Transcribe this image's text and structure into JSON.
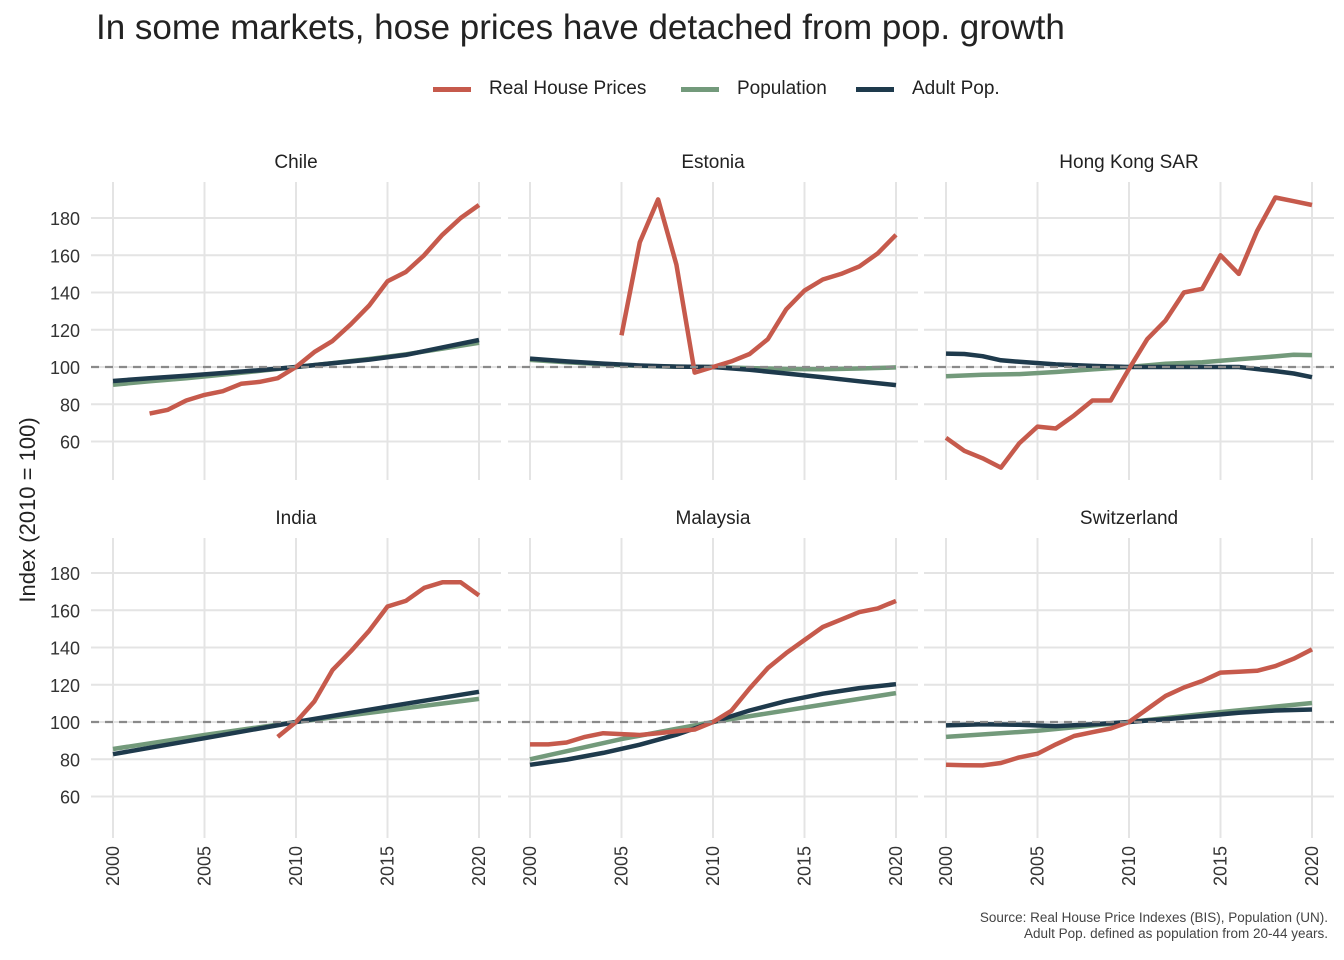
{
  "chart_data": {
    "type": "line",
    "title": "In some markets, hose prices have detached from pop. growth",
    "ylabel": "Index (2010 = 100)",
    "xlabel": "",
    "xlim": [
      2000,
      2020
    ],
    "ylim": [
      40,
      200
    ],
    "x_ticks": [
      "2000",
      "2005",
      "2010",
      "2015",
      "2020"
    ],
    "y_ticks": [
      "60",
      "80",
      "100",
      "120",
      "140",
      "160",
      "180"
    ],
    "reference_line": 100,
    "grid": true,
    "legend_position": "top-center",
    "legend": [
      {
        "name": "Real House Prices",
        "color": "#C65A4C"
      },
      {
        "name": "Population",
        "color": "#739A7B"
      },
      {
        "name": "Adult Pop.",
        "color": "#1E3A4C"
      }
    ],
    "caption": [
      "Source: Real House Price Indexes (BIS), Population (UN).",
      "Adult Pop. defined as population from 20-44 years."
    ],
    "panels": [
      {
        "name": "Chile",
        "series": [
          {
            "name": "Real House Prices",
            "color": "#C65A4C",
            "x": [
              2002,
              2003,
              2004,
              2005,
              2006,
              2007,
              2008,
              2009,
              2010,
              2011,
              2012,
              2013,
              2014,
              2015,
              2016,
              2017,
              2018,
              2019,
              2020
            ],
            "y": [
              75,
              77,
              82,
              85,
              87,
              91,
              92,
              94,
              100,
              108,
              114,
              123,
              133,
              146,
              151,
              160,
              171,
              180,
              187
            ]
          },
          {
            "name": "Population",
            "color": "#739A7B",
            "x": [
              2000,
              2002,
              2004,
              2006,
              2008,
              2010,
              2012,
              2014,
              2016,
              2018,
              2020
            ],
            "y": [
              90.5,
              92.3,
              94.0,
              95.9,
              97.9,
              100,
              102.1,
              104.3,
              106.8,
              109.8,
              113
            ]
          },
          {
            "name": "Adult Pop.",
            "color": "#1E3A4C",
            "x": [
              2000,
              2002,
              2004,
              2006,
              2008,
              2010,
              2012,
              2014,
              2016,
              2018,
              2020
            ],
            "y": [
              92.5,
              94,
              95.3,
              96.8,
              98.3,
              100,
              102,
              104,
              106.5,
              110.5,
              114.5
            ]
          }
        ]
      },
      {
        "name": "Estonia",
        "series": [
          {
            "name": "Real House Prices",
            "color": "#C65A4C",
            "x": [
              2005,
              2006,
              2007,
              2008,
              2009,
              2010,
              2011,
              2012,
              2013,
              2014,
              2015,
              2016,
              2017,
              2018,
              2019,
              2020
            ],
            "y": [
              117,
              167,
              190,
              155,
              97,
              100,
              103,
              107,
              115,
              131,
              141,
              147,
              150,
              154,
              161,
              171
            ]
          },
          {
            "name": "Population",
            "color": "#739A7B",
            "x": [
              2000,
              2002,
              2004,
              2006,
              2008,
              2010,
              2012,
              2014,
              2016,
              2018,
              2020
            ],
            "y": [
              103.8,
              102.6,
              101.5,
              100.6,
              100.2,
              100,
              99.4,
              98.9,
              98.8,
              99.2,
              99.8
            ]
          },
          {
            "name": "Adult Pop.",
            "color": "#1E3A4C",
            "x": [
              2000,
              2002,
              2004,
              2006,
              2008,
              2010,
              2012,
              2014,
              2016,
              2018,
              2020
            ],
            "y": [
              104.5,
              103,
              101.8,
              100.8,
              100.2,
              100,
              98.5,
              96.5,
              94.5,
              92.3,
              90.3
            ]
          }
        ]
      },
      {
        "name": "Hong Kong SAR",
        "series": [
          {
            "name": "Real House Prices",
            "color": "#C65A4C",
            "x": [
              2000,
              2001,
              2002,
              2003,
              2004,
              2005,
              2006,
              2007,
              2008,
              2009,
              2010,
              2011,
              2012,
              2013,
              2014,
              2015,
              2016,
              2017,
              2018,
              2019,
              2020
            ],
            "y": [
              62,
              55,
              51,
              46,
              59,
              68,
              67,
              74,
              82,
              82,
              99,
              115,
              125,
              140,
              142,
              160,
              150,
              173,
              191,
              189,
              187
            ]
          },
          {
            "name": "Population",
            "color": "#739A7B",
            "x": [
              2000,
              2002,
              2004,
              2006,
              2008,
              2010,
              2012,
              2014,
              2016,
              2018,
              2019,
              2020
            ],
            "y": [
              95,
              95.8,
              96.2,
              97.3,
              98.7,
              100,
              101.7,
              102.6,
              104.2,
              105.7,
              106.6,
              106.4
            ]
          },
          {
            "name": "Adult Pop.",
            "color": "#1E3A4C",
            "x": [
              2000,
              2001,
              2002,
              2003,
              2004,
              2006,
              2008,
              2010,
              2012,
              2014,
              2016,
              2018,
              2019,
              2020
            ],
            "y": [
              107.2,
              107,
              105.8,
              103.6,
              102.8,
              101.4,
              100.6,
              100,
              100,
              100,
              100,
              97.8,
              96.5,
              94.5
            ]
          }
        ]
      },
      {
        "name": "India",
        "series": [
          {
            "name": "Real House Prices",
            "color": "#C65A4C",
            "x": [
              2009,
              2010,
              2011,
              2012,
              2013,
              2014,
              2015,
              2016,
              2017,
              2018,
              2019,
              2020
            ],
            "y": [
              92,
              100,
              111,
              128,
              138,
              149,
              162,
              165,
              172,
              175,
              175,
              168
            ]
          },
          {
            "name": "Population",
            "color": "#739A7B",
            "x": [
              2000,
              2005,
              2010,
              2015,
              2020
            ],
            "y": [
              85.5,
              93,
              100,
              106.2,
              112.4
            ]
          },
          {
            "name": "Adult Pop.",
            "color": "#1E3A4C",
            "x": [
              2000,
              2005,
              2010,
              2015,
              2020
            ],
            "y": [
              82.7,
              91.3,
              100,
              108.2,
              116.2
            ]
          }
        ]
      },
      {
        "name": "Malaysia",
        "series": [
          {
            "name": "Real House Prices",
            "color": "#C65A4C",
            "x": [
              2000,
              2001,
              2002,
              2003,
              2004,
              2005,
              2006,
              2007,
              2008,
              2009,
              2010,
              2011,
              2012,
              2013,
              2014,
              2015,
              2016,
              2017,
              2018,
              2019,
              2020
            ],
            "y": [
              88,
              88,
              89,
              92,
              94,
              93.5,
              93,
              94,
              95,
              96,
              100,
              106,
              118,
              129,
              137,
              144,
              151,
              155,
              159,
              161,
              165
            ]
          },
          {
            "name": "Population",
            "color": "#739A7B",
            "x": [
              2000,
              2005,
              2010,
              2015,
              2020
            ],
            "y": [
              80,
              90.8,
              100,
              107.8,
              115.5
            ]
          },
          {
            "name": "Adult Pop.",
            "color": "#1E3A4C",
            "x": [
              2000,
              2002,
              2004,
              2006,
              2008,
              2010,
              2012,
              2014,
              2016,
              2018,
              2020
            ],
            "y": [
              77,
              79.8,
              83.4,
              87.8,
              93.2,
              100,
              106.2,
              111.2,
              115.2,
              118.2,
              120.3
            ]
          }
        ]
      },
      {
        "name": "Switzerland",
        "series": [
          {
            "name": "Real House Prices",
            "color": "#C65A4C",
            "x": [
              2000,
              2001,
              2002,
              2003,
              2004,
              2005,
              2006,
              2007,
              2008,
              2009,
              2010,
              2011,
              2012,
              2013,
              2014,
              2015,
              2016,
              2017,
              2018,
              2019,
              2020
            ],
            "y": [
              77,
              76.8,
              76.7,
              78,
              81,
              83,
              88,
              92.5,
              94.5,
              96.5,
              100,
              107,
              114,
              118.5,
              122,
              126.5,
              127,
              127.5,
              130,
              134,
              139
            ]
          },
          {
            "name": "Population",
            "color": "#739A7B",
            "x": [
              2000,
              2005,
              2010,
              2015,
              2020
            ],
            "y": [
              92,
              95.3,
              100,
              105.3,
              110.2
            ]
          },
          {
            "name": "Adult Pop.",
            "color": "#1E3A4C",
            "x": [
              2000,
              2002,
              2004,
              2006,
              2008,
              2010,
              2012,
              2014,
              2016,
              2018,
              2020
            ],
            "y": [
              98.2,
              98.8,
              98.5,
              97.8,
              98.7,
              100,
              101.5,
              103.2,
              105,
              106.2,
              106.7
            ]
          }
        ]
      }
    ]
  }
}
